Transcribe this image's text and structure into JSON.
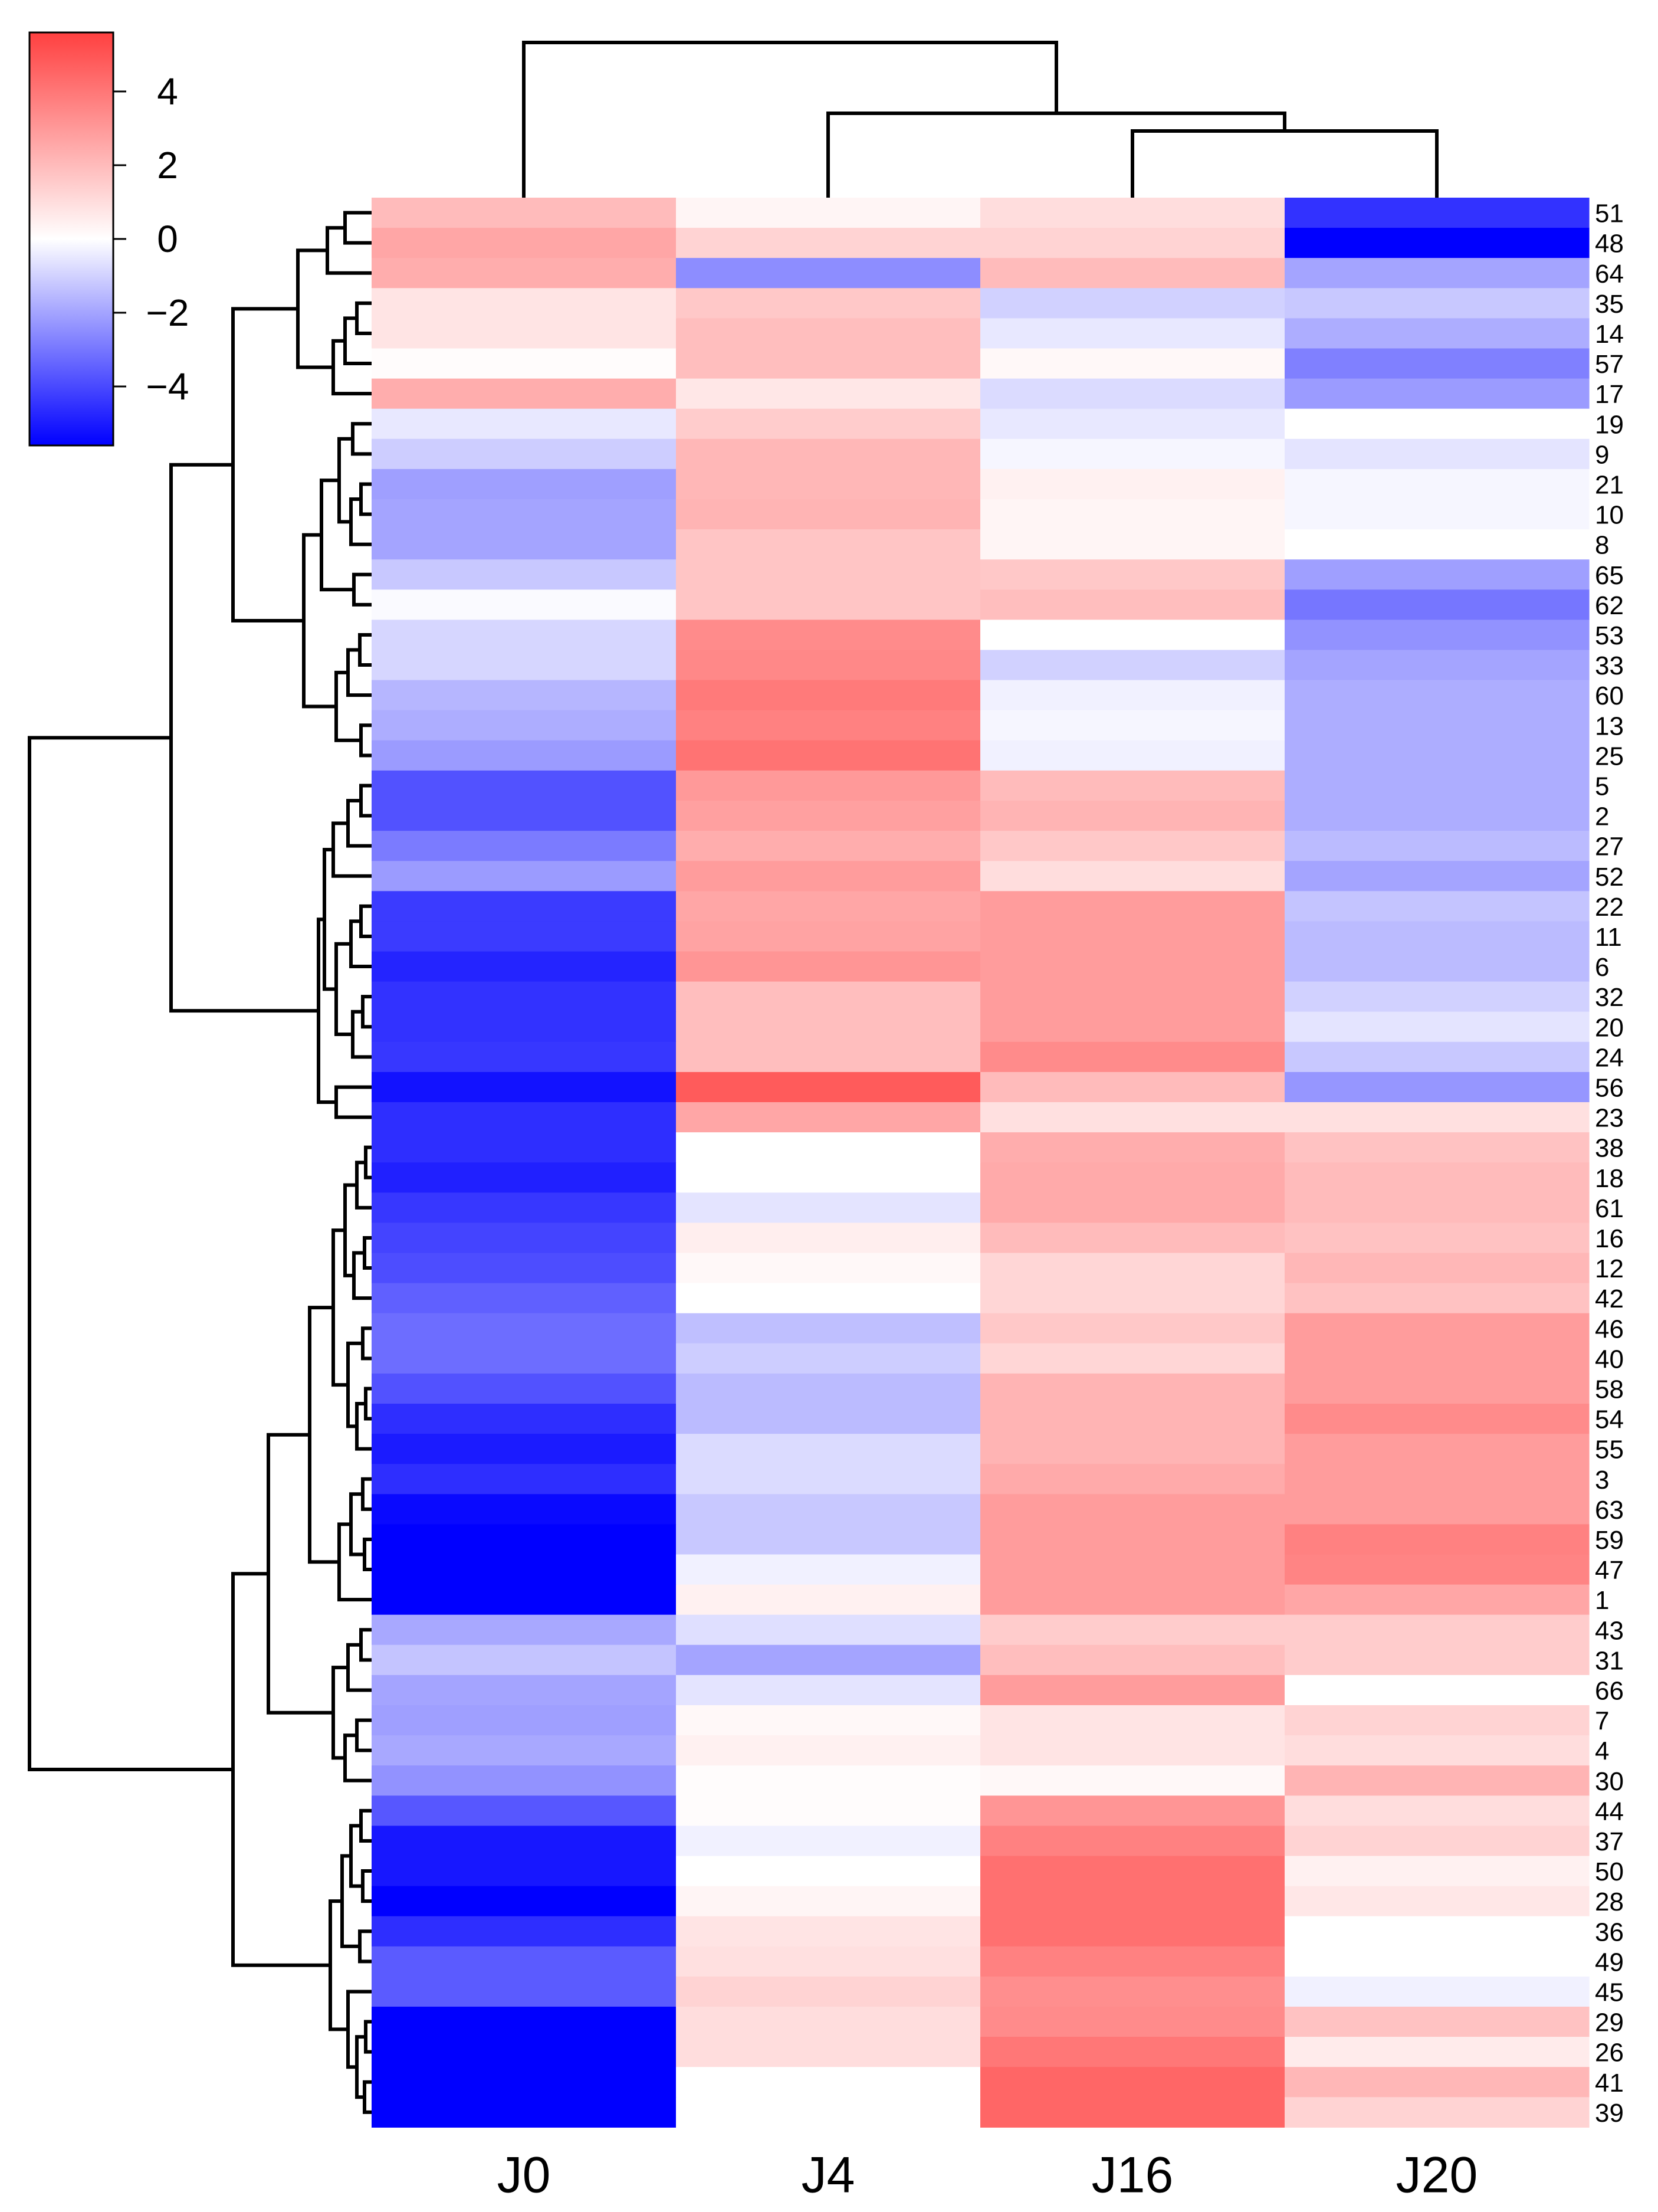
{
  "chart_data": {
    "type": "heatmap",
    "title": "",
    "columns": [
      "J0",
      "J4",
      "J16",
      "J20"
    ],
    "rows": [
      "51",
      "48",
      "64",
      "35",
      "14",
      "57",
      "17",
      "19",
      "9",
      "21",
      "10",
      "8",
      "65",
      "62",
      "53",
      "33",
      "60",
      "13",
      "25",
      "5",
      "2",
      "27",
      "52",
      "22",
      "11",
      "6",
      "32",
      "20",
      "24",
      "56",
      "23",
      "38",
      "18",
      "61",
      "16",
      "12",
      "42",
      "46",
      "40",
      "58",
      "54",
      "55",
      "3",
      "63",
      "59",
      "47",
      "1",
      "43",
      "31",
      "66",
      "7",
      "4",
      "30",
      "44",
      "37",
      "50",
      "28",
      "36",
      "49",
      "45",
      "29",
      "26",
      "41",
      "39"
    ],
    "values": [
      [
        2.0,
        0.3,
        1.0,
        -4.5
      ],
      [
        2.6,
        1.3,
        1.3,
        -6.0
      ],
      [
        2.4,
        -2.5,
        2.0,
        -2.0
      ],
      [
        0.8,
        1.6,
        -1.0,
        -1.2
      ],
      [
        0.8,
        1.9,
        -0.5,
        -1.8
      ],
      [
        0.1,
        1.9,
        0.2,
        -2.8
      ],
      [
        2.4,
        0.7,
        -0.8,
        -2.2
      ],
      [
        -0.5,
        1.5,
        -0.5,
        0.0
      ],
      [
        -1.1,
        2.1,
        -0.2,
        -0.6
      ],
      [
        -2.1,
        2.1,
        0.4,
        -0.2
      ],
      [
        -2.0,
        2.2,
        0.3,
        -0.2
      ],
      [
        -2.0,
        1.7,
        0.3,
        0.0
      ],
      [
        -1.2,
        1.7,
        1.6,
        -2.1
      ],
      [
        -0.1,
        1.7,
        1.9,
        -3.0
      ],
      [
        -0.9,
        3.4,
        0.0,
        -2.4
      ],
      [
        -0.9,
        3.5,
        -1.0,
        -2.0
      ],
      [
        -1.6,
        3.9,
        -0.3,
        -1.8
      ],
      [
        -1.8,
        3.7,
        -0.2,
        -1.8
      ],
      [
        -2.2,
        4.1,
        -0.3,
        -1.8
      ],
      [
        -3.8,
        3.0,
        2.0,
        -1.8
      ],
      [
        -3.8,
        2.8,
        2.2,
        -1.8
      ],
      [
        -2.9,
        2.4,
        1.6,
        -1.5
      ],
      [
        -2.2,
        2.9,
        1.0,
        -2.0
      ],
      [
        -4.3,
        2.6,
        2.9,
        -1.3
      ],
      [
        -4.3,
        2.7,
        2.9,
        -1.5
      ],
      [
        -4.8,
        3.1,
        2.9,
        -1.5
      ],
      [
        -4.5,
        1.9,
        2.9,
        -1.0
      ],
      [
        -4.5,
        1.9,
        2.9,
        -0.6
      ],
      [
        -4.4,
        1.9,
        3.4,
        -1.2
      ],
      [
        -5.2,
        4.8,
        2.0,
        -2.3
      ],
      [
        -4.6,
        2.6,
        0.9,
        0.9
      ],
      [
        -4.6,
        0.0,
        2.4,
        1.8
      ],
      [
        -4.9,
        0.0,
        2.5,
        2.0
      ],
      [
        -4.4,
        -0.6,
        2.5,
        2.0
      ],
      [
        -4.1,
        0.5,
        2.0,
        1.8
      ],
      [
        -3.9,
        0.2,
        1.2,
        2.1
      ],
      [
        -3.5,
        0.0,
        1.2,
        1.8
      ],
      [
        -3.2,
        -1.4,
        1.6,
        2.9
      ],
      [
        -3.2,
        -1.1,
        1.2,
        2.9
      ],
      [
        -3.8,
        -1.5,
        2.2,
        2.9
      ],
      [
        -4.6,
        -1.5,
        2.2,
        3.4
      ],
      [
        -5.0,
        -0.8,
        2.2,
        2.9
      ],
      [
        -4.6,
        -0.8,
        2.5,
        2.9
      ],
      [
        -5.4,
        -1.2,
        2.9,
        2.9
      ],
      [
        -5.8,
        -1.2,
        2.9,
        3.7
      ],
      [
        -6.0,
        -0.3,
        2.9,
        3.6
      ],
      [
        -6.0,
        0.4,
        2.9,
        2.6
      ],
      [
        -1.9,
        -0.7,
        1.5,
        1.5
      ],
      [
        -1.3,
        -2.0,
        1.9,
        1.5
      ],
      [
        -2.0,
        -0.6,
        2.9,
        0.0
      ],
      [
        -2.1,
        0.2,
        0.8,
        1.3
      ],
      [
        -1.9,
        0.4,
        0.8,
        1.0
      ],
      [
        -2.4,
        0.1,
        0.2,
        2.2
      ],
      [
        -3.7,
        0.1,
        3.1,
        1.0
      ],
      [
        -5.1,
        -0.3,
        3.7,
        1.3
      ],
      [
        -5.1,
        0.0,
        4.2,
        0.4
      ],
      [
        -5.6,
        0.3,
        4.2,
        0.7
      ],
      [
        -4.6,
        0.8,
        4.2,
        0.0
      ],
      [
        -3.6,
        0.9,
        3.7,
        0.0
      ],
      [
        -3.6,
        1.3,
        3.3,
        -0.3
      ],
      [
        -6.6,
        1.0,
        3.4,
        1.8
      ],
      [
        -6.4,
        1.0,
        4.0,
        0.6
      ],
      [
        -6.6,
        0.0,
        4.5,
        2.1
      ],
      [
        -6.3,
        0.0,
        4.5,
        1.3
      ]
    ],
    "colorbar": {
      "ticks": [
        4,
        2,
        0,
        -2,
        -4
      ],
      "tick_labels": [
        "4",
        "2",
        "0",
        "−2",
        "−4"
      ],
      "range": [
        -5.6,
        5.6
      ],
      "low_color": "#0000ff",
      "mid_color": "#ffffff",
      "high_color": "#ff4040"
    },
    "legend_position": "top-left",
    "row_dendrogram": true,
    "column_dendrogram": true,
    "xlabel": "",
    "ylabel": ""
  }
}
